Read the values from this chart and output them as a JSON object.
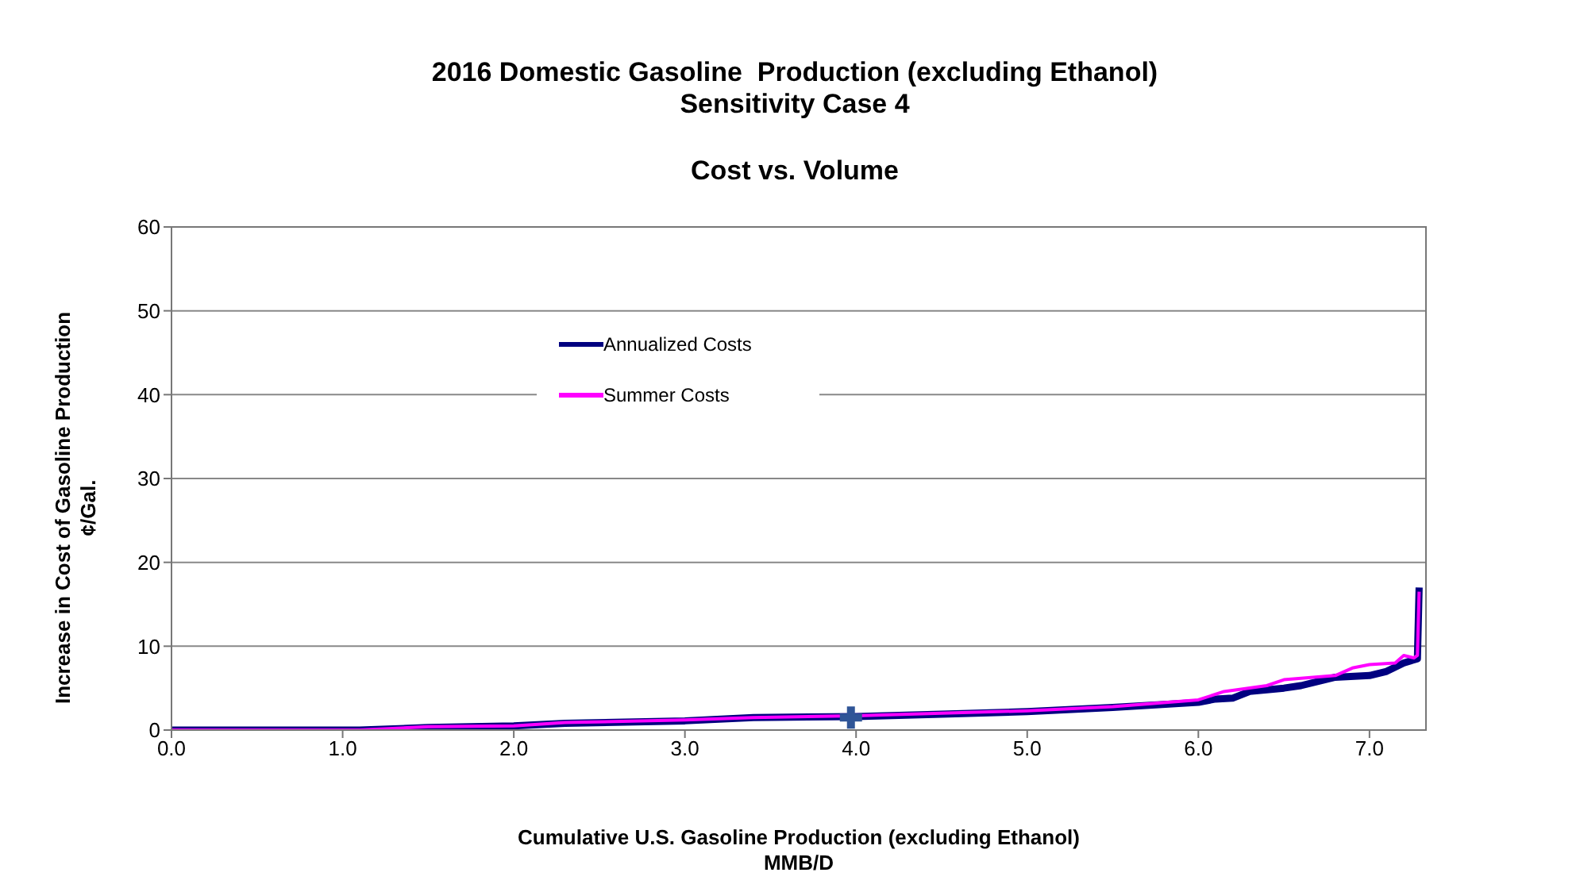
{
  "chart_data": {
    "type": "line",
    "title": "2016 Domestic Gasoline  Production (excluding Ethanol)\nSensitivity Case 4",
    "subtitle": "Cost vs. Volume",
    "xlabel": "Cumulative U.S. Gasoline Production (excluding Ethanol)\nMMB/D",
    "ylabel": "Increase in Cost of Gasoline Production\n¢/Gal.",
    "xlim": [
      0,
      7.33
    ],
    "xticks": [
      {
        "value": 0,
        "label": "0.0"
      },
      {
        "value": 1,
        "label": "1.0"
      },
      {
        "value": 2,
        "label": "2.0"
      },
      {
        "value": 3,
        "label": "3.0"
      },
      {
        "value": 4,
        "label": "4.0"
      },
      {
        "value": 5,
        "label": "5.0"
      },
      {
        "value": 6,
        "label": "6.0"
      },
      {
        "value": 7,
        "label": "7.0"
      }
    ],
    "ylim": [
      0,
      60
    ],
    "yticks": [
      0,
      10,
      20,
      30,
      40,
      50,
      60
    ],
    "grid": "y",
    "legend": "top left",
    "marker": "none",
    "line_style": "solid",
    "series": [
      {
        "name": "Annualized Costs",
        "color": "#000080",
        "x": [
          0,
          1.1,
          1.5,
          2,
          2.3,
          3,
          3.4,
          4,
          4.5,
          5,
          5.5,
          6,
          6.1,
          6.2,
          6.3,
          6.5,
          6.6,
          6.8,
          7.0,
          7.1,
          7.2,
          7.28,
          7.29
        ],
        "values": [
          0,
          0,
          0.3,
          0.5,
          0.8,
          1.1,
          1.5,
          1.6,
          1.9,
          2.2,
          2.7,
          3.3,
          3.7,
          3.8,
          4.6,
          5.0,
          5.3,
          6.3,
          6.5,
          7.0,
          8.0,
          8.5,
          17
        ]
      },
      {
        "name": "Summer Costs",
        "color": "#ff00ff",
        "x": [
          0,
          1.1,
          1.5,
          2,
          2.3,
          3,
          3.4,
          4,
          4.5,
          5,
          5.5,
          6,
          6.15,
          6.4,
          6.5,
          6.8,
          6.9,
          7.0,
          7.15,
          7.2,
          7.26,
          7.28,
          7.29
        ],
        "values": [
          0,
          0,
          0.4,
          0.5,
          0.9,
          1.2,
          1.5,
          1.7,
          2.0,
          2.3,
          2.8,
          3.6,
          4.6,
          5.3,
          6.0,
          6.5,
          7.4,
          7.8,
          8.0,
          8.9,
          8.6,
          8.9,
          16.5
        ]
      },
      {
        "type": "scatter",
        "marker": "cross",
        "color": "#2f5597",
        "x": [
          3.97
        ],
        "values": [
          1.5
        ]
      }
    ]
  }
}
